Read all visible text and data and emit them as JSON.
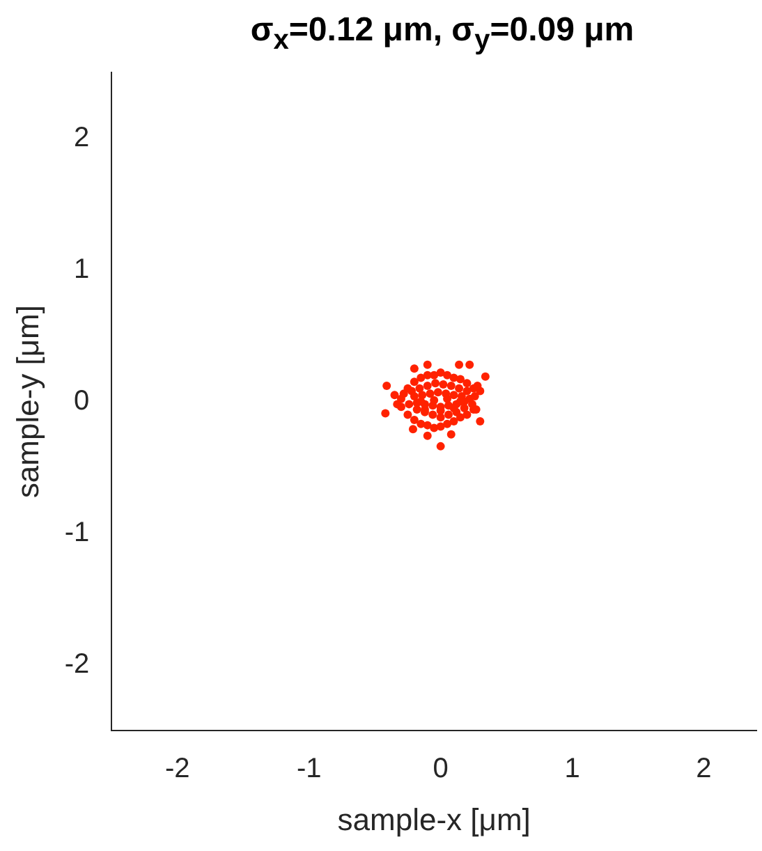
{
  "chart_data": {
    "type": "scatter",
    "title": "σ$_{x}$=0.12 μm, σ$_{y}$=0.09 μm",
    "xlabel": "sample-x [μm]",
    "ylabel": "sample-y [μm]",
    "x": [
      -0.1,
      0.14,
      0.22,
      0.34,
      -0.41,
      -0.42,
      -0.21,
      0,
      0.08,
      -0.1,
      0.3,
      -0.2,
      0.3,
      -0.3,
      -0.25,
      -0.2,
      -0.15,
      -0.1,
      -0.05,
      0,
      0.05,
      0.1,
      0.15,
      0.2,
      0.25,
      -0.3,
      -0.25,
      -0.2,
      -0.15,
      -0.1,
      -0.05,
      0,
      0.05,
      0.1,
      0.15,
      0.2,
      0.25,
      -0.28,
      -0.22,
      -0.16,
      -0.1,
      -0.04,
      0.02,
      0.08,
      0.14,
      0.2,
      0.26,
      -0.24,
      -0.18,
      -0.12,
      -0.06,
      0,
      0.06,
      0.12,
      0.18,
      0.24,
      -0.2,
      -0.14,
      -0.08,
      -0.02,
      0.04,
      0.1,
      0.16,
      0.22,
      -0.18,
      -0.12,
      -0.06,
      0,
      0.06,
      0.12,
      0.18,
      -0.15,
      -0.05,
      0.05,
      0.15,
      -0.12,
      0,
      0.1,
      0.27,
      -0.35,
      -0.33,
      0.28
    ],
    "values": [
      0.28,
      0.28,
      0.28,
      0.19,
      0.12,
      -0.09,
      -0.21,
      -0.34,
      -0.25,
      -0.26,
      -0.15,
      0.25,
      0.08,
      0.02,
      0.1,
      0.15,
      0.18,
      0.2,
      0.2,
      0.22,
      0.2,
      0.18,
      0.17,
      0.14,
      0.1,
      -0.04,
      -0.1,
      -0.14,
      -0.17,
      -0.18,
      -0.2,
      -0.19,
      -0.17,
      -0.15,
      -0.12,
      -0.1,
      -0.06,
      0.06,
      0.08,
      0.1,
      0.12,
      0.14,
      0.13,
      0.12,
      0.1,
      0.08,
      0.04,
      -0.02,
      -0.06,
      -0.08,
      -0.1,
      -0.12,
      -0.1,
      -0.08,
      -0.05,
      -0.02,
      0.04,
      0.05,
      0.06,
      0.07,
      0.06,
      0.05,
      0.04,
      0.02,
      -0.01,
      -0.02,
      -0.03,
      -0.04,
      -0.03,
      -0.02,
      0,
      0,
      0.01,
      0.02,
      0,
      -0.06,
      -0.07,
      -0.05,
      -0.06,
      0.05,
      -0.02,
      0.12
    ],
    "color": "#ff2200",
    "marker": "circle",
    "xlim": [
      -2.5,
      2.4
    ],
    "ylim": [
      -2.5,
      2.5
    ],
    "xticks": [
      -2,
      -1,
      0,
      1,
      2
    ],
    "yticks": [
      -2,
      -1,
      0,
      1,
      2
    ],
    "grid": false,
    "legend": false
  }
}
